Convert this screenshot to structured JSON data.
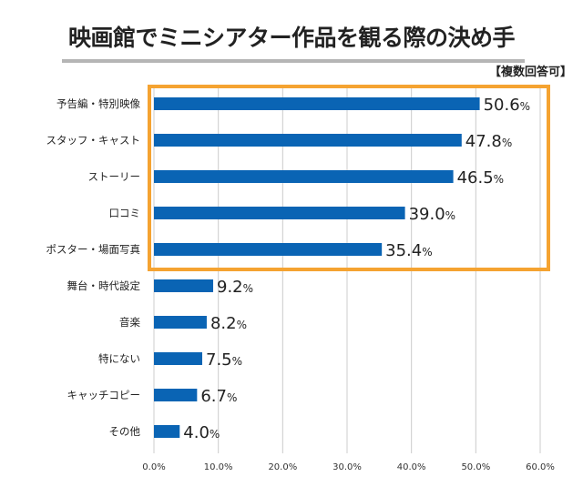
{
  "chart_data": {
    "type": "bar",
    "orientation": "horizontal",
    "title": "映画館でミニシアター作品を観る際の決め手",
    "note": "【複数回答可】",
    "categories": [
      "予告編・特別映像",
      "スタッフ・キャスト",
      "ストーリー",
      "口コミ",
      "ポスター・場面写真",
      "舞台・時代設定",
      "音楽",
      "特にない",
      "キャッチコピー",
      "その他"
    ],
    "values": [
      50.6,
      47.8,
      46.5,
      39.0,
      35.4,
      9.2,
      8.2,
      7.5,
      6.7,
      4.0
    ],
    "data_labels": [
      "50.6",
      "47.8",
      "46.5",
      "39.0",
      "35.4",
      "9.2",
      "8.2",
      "7.5",
      "6.7",
      "4.0"
    ],
    "data_label_unit": "%",
    "xlim": [
      0,
      60
    ],
    "x_ticks": [
      "0.0%",
      "10.0%",
      "20.0%",
      "30.0%",
      "40.0%",
      "50.0%",
      "60.0%"
    ],
    "grid": "vertical",
    "highlight_top_n": 5,
    "colors": {
      "bar": "#0a64b4",
      "highlight": "#f5a331",
      "grid": "#cccccc",
      "title_underline": "#b5b5b5"
    }
  }
}
